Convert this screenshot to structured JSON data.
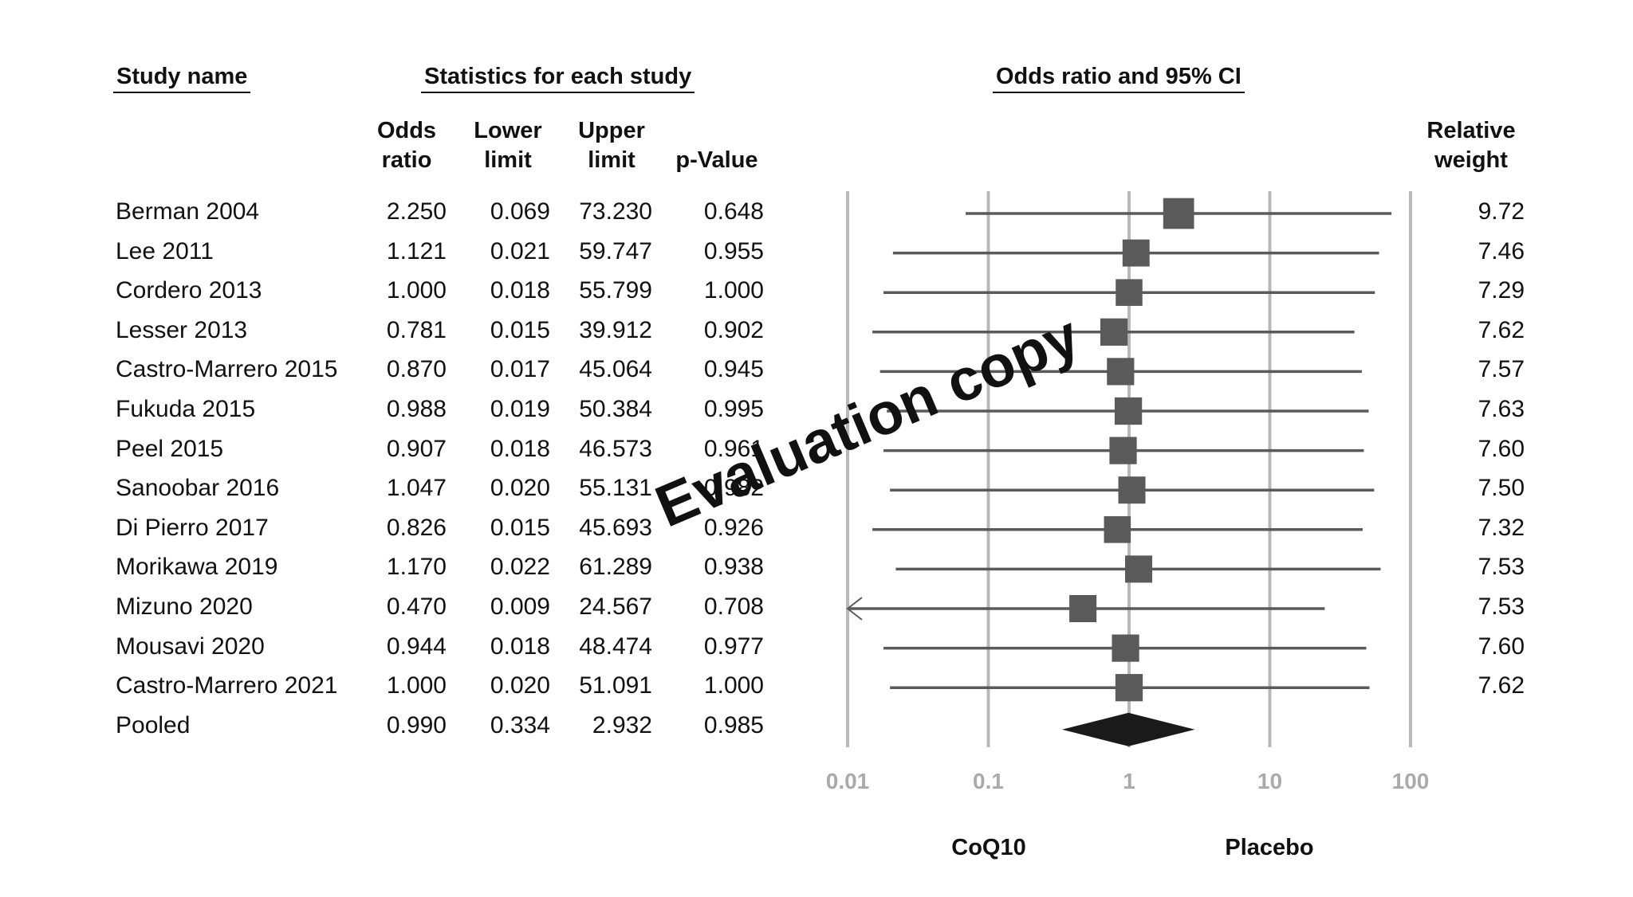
{
  "headers": {
    "study_name": "Study name",
    "stats": "Statistics for each study",
    "plot": "Odds ratio and 95% CI",
    "or_line1": "Odds",
    "or_line2": "ratio",
    "lower_line1": "Lower",
    "lower_line2": "limit",
    "upper_line1": "Upper",
    "upper_line2": "limit",
    "pvalue": "p-Value",
    "weight_line1": "Relative",
    "weight_line2": "weight"
  },
  "rows": [
    {
      "study": "Berman 2004",
      "or": "2.250",
      "lower": "0.069",
      "upper": "73.230",
      "p": "0.648",
      "weight": "9.72"
    },
    {
      "study": "Lee 2011",
      "or": "1.121",
      "lower": "0.021",
      "upper": "59.747",
      "p": "0.955",
      "weight": "7.46"
    },
    {
      "study": "Cordero 2013",
      "or": "1.000",
      "lower": "0.018",
      "upper": "55.799",
      "p": "1.000",
      "weight": "7.29"
    },
    {
      "study": "Lesser 2013",
      "or": "0.781",
      "lower": "0.015",
      "upper": "39.912",
      "p": "0.902",
      "weight": "7.62"
    },
    {
      "study": "Castro-Marrero 2015",
      "or": "0.870",
      "lower": "0.017",
      "upper": "45.064",
      "p": "0.945",
      "weight": "7.57"
    },
    {
      "study": "Fukuda 2015",
      "or": "0.988",
      "lower": "0.019",
      "upper": "50.384",
      "p": "0.995",
      "weight": "7.63"
    },
    {
      "study": "Peel 2015",
      "or": "0.907",
      "lower": "0.018",
      "upper": "46.573",
      "p": "0.961",
      "weight": "7.60"
    },
    {
      "study": "Sanoobar 2016",
      "or": "1.047",
      "lower": "0.020",
      "upper": "55.131",
      "p": "0.982",
      "weight": "7.50"
    },
    {
      "study": "Di Pierro 2017",
      "or": "0.826",
      "lower": "0.015",
      "upper": "45.693",
      "p": "0.926",
      "weight": "7.32"
    },
    {
      "study": "Morikawa 2019",
      "or": "1.170",
      "lower": "0.022",
      "upper": "61.289",
      "p": "0.938",
      "weight": "7.53"
    },
    {
      "study": "Mizuno 2020",
      "or": "0.470",
      "lower": "0.009",
      "upper": "24.567",
      "p": "0.708",
      "weight": "7.53"
    },
    {
      "study": "Mousavi 2020",
      "or": "0.944",
      "lower": "0.018",
      "upper": "48.474",
      "p": "0.977",
      "weight": "7.60"
    },
    {
      "study": "Castro-Marrero 2021",
      "or": "1.000",
      "lower": "0.020",
      "upper": "51.091",
      "p": "1.000",
      "weight": "7.62"
    },
    {
      "study": "Pooled",
      "or": "0.990",
      "lower": "0.334",
      "upper": "2.932",
      "p": "0.985",
      "weight": ""
    }
  ],
  "axis": {
    "scale": "log",
    "ticks": [
      "0.01",
      "0.1",
      "1",
      "10",
      "100"
    ],
    "left_label": "CoQ10",
    "right_label": "Placebo"
  },
  "watermark": "Evaluation copy",
  "colors": {
    "marker": "#5a5a5a",
    "diamond": "#1a1a1a",
    "gridline": "#b8b8b8",
    "tick_text": "#aaaaaa"
  },
  "chart_data": {
    "type": "forest",
    "title": "Odds ratio and 95% CI",
    "x_scale": "log",
    "xlim": [
      0.01,
      100
    ],
    "reference_line": 1,
    "studies": [
      {
        "name": "Berman 2004",
        "or": 2.25,
        "lower": 0.069,
        "upper": 73.23,
        "weight": 9.72
      },
      {
        "name": "Lee 2011",
        "or": 1.121,
        "lower": 0.021,
        "upper": 59.747,
        "weight": 7.46
      },
      {
        "name": "Cordero 2013",
        "or": 1.0,
        "lower": 0.018,
        "upper": 55.799,
        "weight": 7.29
      },
      {
        "name": "Lesser 2013",
        "or": 0.781,
        "lower": 0.015,
        "upper": 39.912,
        "weight": 7.62
      },
      {
        "name": "Castro-Marrero 2015",
        "or": 0.87,
        "lower": 0.017,
        "upper": 45.064,
        "weight": 7.57
      },
      {
        "name": "Fukuda 2015",
        "or": 0.988,
        "lower": 0.019,
        "upper": 50.384,
        "weight": 7.63
      },
      {
        "name": "Peel 2015",
        "or": 0.907,
        "lower": 0.018,
        "upper": 46.573,
        "weight": 7.6
      },
      {
        "name": "Sanoobar 2016",
        "or": 1.047,
        "lower": 0.02,
        "upper": 55.131,
        "weight": 7.5
      },
      {
        "name": "Di Pierro 2017",
        "or": 0.826,
        "lower": 0.015,
        "upper": 45.693,
        "weight": 7.32
      },
      {
        "name": "Morikawa 2019",
        "or": 1.17,
        "lower": 0.022,
        "upper": 61.289,
        "weight": 7.53
      },
      {
        "name": "Mizuno 2020",
        "or": 0.47,
        "lower": 0.009,
        "upper": 24.567,
        "weight": 7.53
      },
      {
        "name": "Mousavi 2020",
        "or": 0.944,
        "lower": 0.018,
        "upper": 48.474,
        "weight": 7.6
      },
      {
        "name": "Castro-Marrero 2021",
        "or": 1.0,
        "lower": 0.02,
        "upper": 51.091,
        "weight": 7.62
      }
    ],
    "pooled": {
      "name": "Pooled",
      "or": 0.99,
      "lower": 0.334,
      "upper": 2.932
    }
  }
}
